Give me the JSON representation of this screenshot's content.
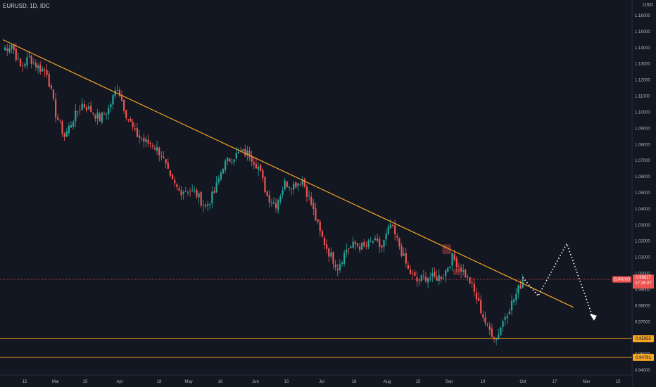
{
  "header": {
    "symbol": "EURUSD, 1D, IDC",
    "currency": "USD"
  },
  "price_tag": {
    "symbol": "EURUSD",
    "price": "0.99627",
    "countdown": "17:26:07"
  },
  "level_tags": [
    "0.95955",
    "0.94791"
  ],
  "colors": {
    "background": "#131722",
    "bull": "#26a69a",
    "bear": "#ef5350",
    "trendline": "#f5a623",
    "support": "#f5a623",
    "projection": "#ffffff",
    "price_line": "#ef5350"
  },
  "chart_data": {
    "type": "candlestick",
    "title": "EURUSD, 1D, IDC",
    "y_axis": {
      "unit": "USD",
      "range": [
        0.938,
        1.172
      ],
      "ticks": [
        "1.16000",
        "1.15000",
        "1.14000",
        "1.13000",
        "1.12000",
        "1.11000",
        "1.10000",
        "1.09000",
        "1.08000",
        "1.07000",
        "1.06000",
        "1.05000",
        "1.04000",
        "1.03000",
        "1.02000",
        "1.01000",
        "1.00000",
        "0.99000",
        "0.98000",
        "0.97000",
        "0.96000",
        "0.95000",
        "0.94000"
      ]
    },
    "x_axis": {
      "ticks": [
        "15",
        "Mar",
        "15",
        "Apr",
        "18",
        "May",
        "16",
        "Jun",
        "15",
        "Jul",
        "18",
        "Aug",
        "15",
        "Sep",
        "19",
        "Oct",
        "17",
        "Nov",
        "15"
      ]
    },
    "close_path": [
      [
        0,
        1.139
      ],
      [
        4,
        1.142
      ],
      [
        8,
        1.128
      ],
      [
        12,
        1.134
      ],
      [
        16,
        1.128
      ],
      [
        20,
        1.125
      ],
      [
        24,
        1.099
      ],
      [
        28,
        1.085
      ],
      [
        32,
        1.096
      ],
      [
        36,
        1.105
      ],
      [
        40,
        1.101
      ],
      [
        44,
        1.096
      ],
      [
        48,
        1.102
      ],
      [
        52,
        1.116
      ],
      [
        56,
        1.099
      ],
      [
        60,
        1.087
      ],
      [
        64,
        1.082
      ],
      [
        68,
        1.08
      ],
      [
        72,
        1.074
      ],
      [
        76,
        1.058
      ],
      [
        80,
        1.051
      ],
      [
        84,
        1.052
      ],
      [
        88,
        1.049
      ],
      [
        92,
        1.041
      ],
      [
        96,
        1.05
      ],
      [
        100,
        1.067
      ],
      [
        104,
        1.072
      ],
      [
        108,
        1.075
      ],
      [
        112,
        1.074
      ],
      [
        116,
        1.066
      ],
      [
        120,
        1.048
      ],
      [
        124,
        1.043
      ],
      [
        128,
        1.056
      ],
      [
        132,
        1.055
      ],
      [
        136,
        1.058
      ],
      [
        140,
        1.043
      ],
      [
        144,
        1.025
      ],
      [
        148,
        1.013
      ],
      [
        152,
        1.004
      ],
      [
        156,
        1.015
      ],
      [
        160,
        1.018
      ],
      [
        164,
        1.016
      ],
      [
        168,
        1.02
      ],
      [
        172,
        1.016
      ],
      [
        176,
        1.03
      ],
      [
        180,
        1.017
      ],
      [
        184,
        1.002
      ],
      [
        188,
        0.995
      ],
      [
        192,
        0.998
      ],
      [
        196,
        0.997
      ],
      [
        200,
        0.999
      ],
      [
        204,
        1.01
      ],
      [
        208,
        1.003
      ],
      [
        212,
        0.995
      ],
      [
        216,
        0.981
      ],
      [
        220,
        0.966
      ],
      [
        224,
        0.96
      ],
      [
        228,
        0.974
      ],
      [
        232,
        0.984
      ],
      [
        236,
        0.996
      ]
    ],
    "trendline": {
      "from": {
        "bar": 0,
        "price": 1.145
      },
      "to": {
        "bar": 259,
        "price": 0.979
      }
    },
    "support_levels": [
      0.95955,
      0.94791
    ],
    "last_price": 0.99627,
    "projection": [
      {
        "bar": 236,
        "price": 0.9975
      },
      {
        "bar": 243,
        "price": 0.986
      },
      {
        "bar": 256,
        "price": 1.0185
      },
      {
        "bar": 268,
        "price": 0.972
      }
    ],
    "highlight_boxes": [
      {
        "bar_start": 200,
        "bar_end": 203,
        "high": 1.018,
        "low": 1.012
      },
      {
        "bar_start": 205,
        "bar_end": 207,
        "high": 1.003,
        "low": 0.999
      }
    ]
  }
}
